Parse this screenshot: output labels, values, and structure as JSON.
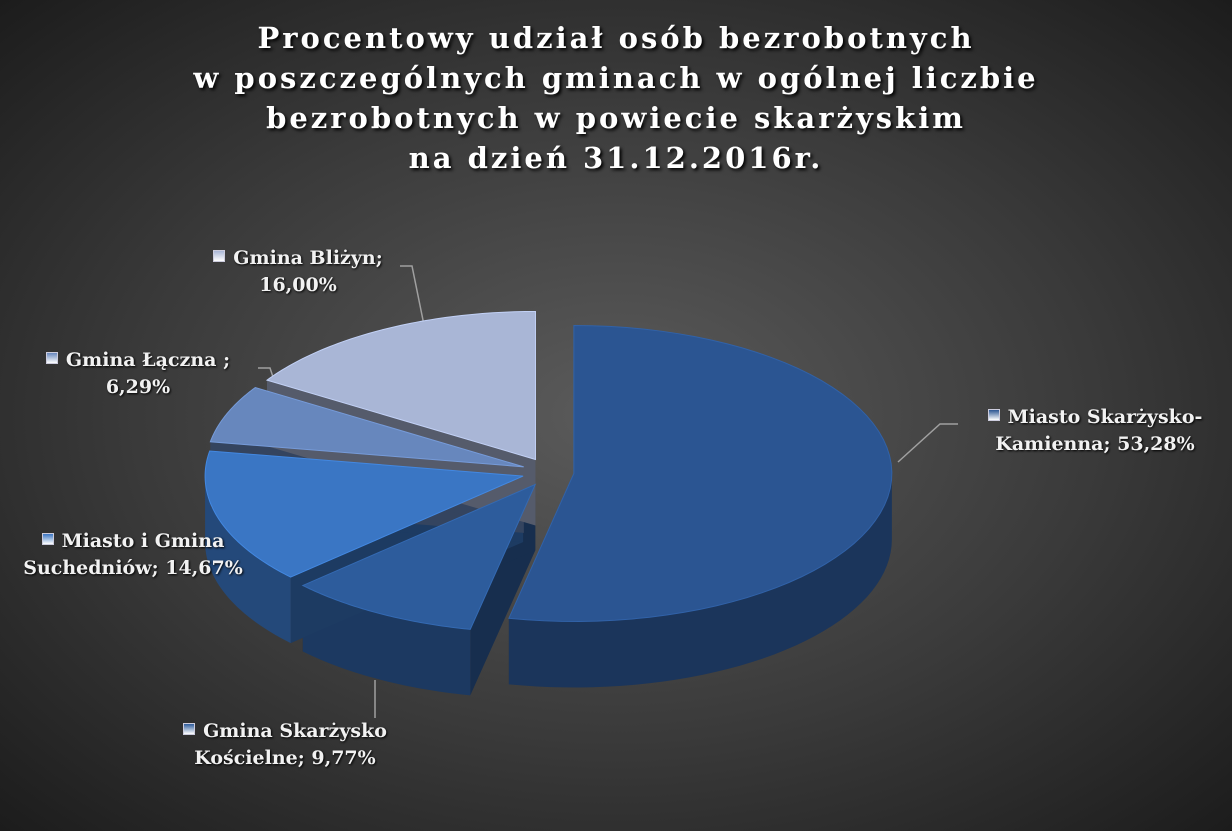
{
  "chart_data": {
    "type": "pie3d",
    "title": [
      "Procentowy udział osób bezrobotnych",
      "w poszczególnych gminach w ogólnej liczbie",
      "bezrobotnych w powiecie skarżyskim",
      "na dzień 31.12.2016r."
    ],
    "categories": [
      "Miasto Skarżysko-Kamienna;",
      "Gmina Skarżysko Kościelne;",
      "Miasto i Gmina Suchedniów;",
      "Gmina Łączna ;",
      "Gmina Bliżyn;"
    ],
    "values": [
      53.28,
      9.77,
      14.67,
      6.29,
      16.0
    ],
    "value_labels": [
      "53,28%",
      "9,77%",
      "14,67%",
      "6,29%",
      "16,00%"
    ],
    "colors": [
      "#2b5592",
      "#2d5c9c",
      "#3a76c4",
      "#6787bd",
      "#a9b6d6"
    ]
  }
}
